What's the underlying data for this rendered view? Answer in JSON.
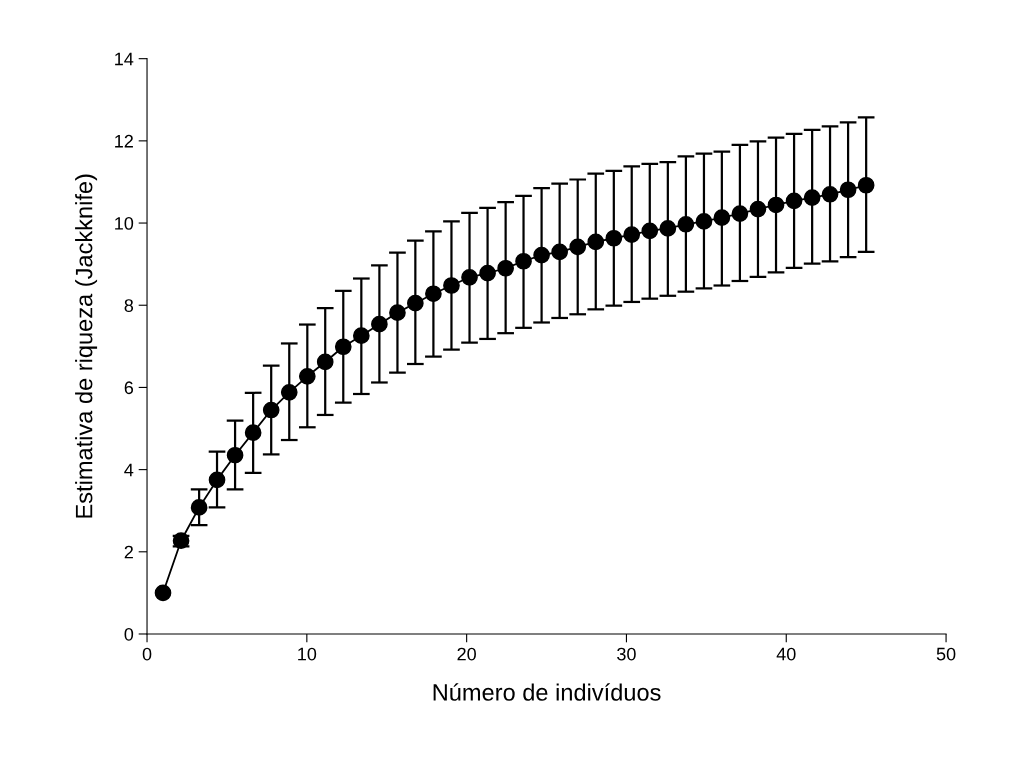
{
  "chart_data": {
    "type": "line",
    "xlabel": "Número de indivíduos",
    "ylabel": "Estimativa de riqueza (Jackknife)",
    "x": [
      1,
      2.13,
      3.26,
      4.38,
      5.51,
      6.64,
      7.77,
      8.9,
      10.03,
      11.15,
      12.28,
      13.41,
      14.54,
      15.67,
      16.79,
      17.92,
      19.05,
      20.18,
      21.31,
      22.44,
      23.56,
      24.69,
      25.82,
      26.95,
      28.08,
      29.21,
      30.33,
      31.46,
      32.59,
      33.72,
      34.85,
      35.97,
      37.1,
      38.23,
      39.36,
      40.49,
      41.62,
      42.74,
      43.87,
      45
    ],
    "series": [
      {
        "color": "#000000",
        "values": [
          1.0,
          2.27,
          3.08,
          3.75,
          4.35,
          4.9,
          5.45,
          5.88,
          6.27,
          6.62,
          6.99,
          7.26,
          7.54,
          7.82,
          8.05,
          8.28,
          8.48,
          8.68,
          8.78,
          8.9,
          9.07,
          9.22,
          9.3,
          9.42,
          9.54,
          9.63,
          9.72,
          9.81,
          9.87,
          9.97,
          10.04,
          10.13,
          10.23,
          10.34,
          10.44,
          10.54,
          10.62,
          10.7,
          10.81,
          10.92
        ],
        "errors": [
          null,
          [
            2.13,
            2.39
          ],
          [
            2.65,
            3.52
          ],
          [
            3.08,
            4.44
          ],
          [
            3.52,
            5.19
          ],
          [
            3.92,
            5.87
          ],
          [
            4.37,
            6.53
          ],
          [
            4.72,
            7.07
          ],
          [
            5.03,
            7.53
          ],
          [
            5.33,
            7.93
          ],
          [
            5.63,
            8.35
          ],
          [
            5.84,
            8.65
          ],
          [
            6.12,
            8.97
          ],
          [
            6.36,
            9.28
          ],
          [
            6.57,
            9.57
          ],
          [
            6.75,
            9.8
          ],
          [
            6.92,
            10.04
          ],
          [
            7.09,
            10.25
          ],
          [
            7.18,
            10.37
          ],
          [
            7.32,
            10.51
          ],
          [
            7.45,
            10.66
          ],
          [
            7.58,
            10.85
          ],
          [
            7.69,
            10.96
          ],
          [
            7.78,
            11.06
          ],
          [
            7.9,
            11.2
          ],
          [
            7.99,
            11.27
          ],
          [
            8.08,
            11.38
          ],
          [
            8.16,
            11.44
          ],
          [
            8.23,
            11.48
          ],
          [
            8.33,
            11.62
          ],
          [
            8.41,
            11.69
          ],
          [
            8.48,
            11.74
          ],
          [
            8.59,
            11.9
          ],
          [
            8.69,
            11.99
          ],
          [
            8.8,
            12.08
          ],
          [
            8.91,
            12.17
          ],
          [
            9.01,
            12.27
          ],
          [
            9.07,
            12.35
          ],
          [
            9.17,
            12.45
          ],
          [
            9.3,
            12.57
          ]
        ]
      }
    ],
    "marker": "circle",
    "line_style": "solid",
    "xlim": [
      0,
      50
    ],
    "xticks": [
      0,
      10,
      20,
      30,
      40,
      50
    ],
    "ylim": [
      0,
      14
    ],
    "yticks": [
      0,
      2,
      4,
      6,
      8,
      10,
      12,
      14
    ],
    "grid": false
  }
}
